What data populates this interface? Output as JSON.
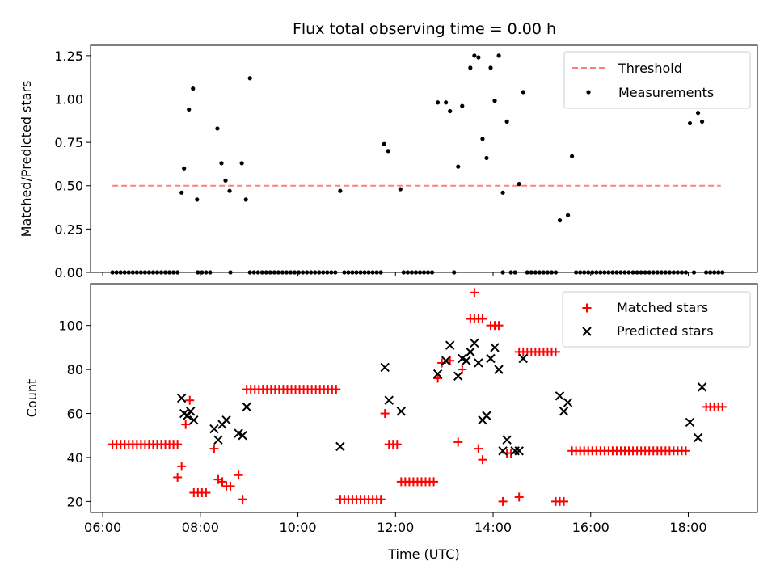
{
  "chart_data": [
    {
      "type": "scatter",
      "title": "Flux total observing time = 0.00 h",
      "xlabel": "",
      "ylabel": "Matched/Predicted stars",
      "ylim": [
        0,
        1.31
      ],
      "yticks": [
        "0.00",
        "0.25",
        "0.50",
        "0.75",
        "1.00",
        "1.25"
      ],
      "legend_position": "top-right",
      "threshold": {
        "name": "Threshold",
        "value": 0.5,
        "x_range": [
          "06:12",
          "18:40"
        ],
        "color": "#ff8080"
      },
      "series": [
        {
          "name": "Measurements",
          "color": "#000000",
          "points": [
            [
              "07:37",
              0.46
            ],
            [
              "07:40",
              0.6
            ],
            [
              "07:46",
              0.94
            ],
            [
              "07:51",
              1.06
            ],
            [
              "07:56",
              0.42
            ],
            [
              "08:21",
              0.83
            ],
            [
              "08:26",
              0.63
            ],
            [
              "08:31",
              0.53
            ],
            [
              "08:36",
              0.47
            ],
            [
              "08:51",
              0.63
            ],
            [
              "08:56",
              0.42
            ],
            [
              "09:01",
              1.12
            ],
            [
              "10:52",
              0.47
            ],
            [
              "11:46",
              0.74
            ],
            [
              "11:51",
              0.7
            ],
            [
              "12:06",
              0.48
            ],
            [
              "12:52",
              0.98
            ],
            [
              "13:02",
              0.98
            ],
            [
              "13:07",
              0.93
            ],
            [
              "13:17",
              0.61
            ],
            [
              "13:22",
              0.96
            ],
            [
              "13:32",
              1.18
            ],
            [
              "13:37",
              1.25
            ],
            [
              "13:42",
              1.24
            ],
            [
              "13:47",
              0.77
            ],
            [
              "13:52",
              0.66
            ],
            [
              "13:57",
              1.18
            ],
            [
              "14:02",
              0.99
            ],
            [
              "14:07",
              1.25
            ],
            [
              "14:12",
              0.46
            ],
            [
              "14:17",
              0.87
            ],
            [
              "14:32",
              0.51
            ],
            [
              "14:37",
              1.04
            ],
            [
              "15:22",
              0.3
            ],
            [
              "15:32",
              0.33
            ],
            [
              "15:37",
              0.67
            ],
            [
              "18:02",
              0.86
            ],
            [
              "18:12",
              0.92
            ],
            [
              "18:17",
              0.87
            ]
          ],
          "zero_ranges": [
            [
              "06:12",
              "07:32"
            ],
            [
              "07:57",
              "08:12"
            ],
            [
              "08:37",
              "08:37"
            ],
            [
              "09:01",
              "10:47"
            ],
            [
              "10:57",
              "11:42"
            ],
            [
              "12:10",
              "12:47"
            ],
            [
              "13:12",
              "13:12"
            ],
            [
              "14:12",
              "14:12"
            ],
            [
              "14:22",
              "14:27"
            ],
            [
              "14:42",
              "15:17"
            ],
            [
              "15:42",
              "17:57"
            ],
            [
              "18:07",
              "18:07"
            ],
            [
              "18:22",
              "18:42"
            ]
          ]
        }
      ]
    },
    {
      "type": "scatter",
      "title": "",
      "xlabel": "Time (UTC)",
      "ylabel": "Count",
      "ylim": [
        15,
        119
      ],
      "yticks": [
        "20",
        "40",
        "60",
        "80",
        "100"
      ],
      "xticks": [
        "06:00",
        "08:00",
        "10:00",
        "12:00",
        "14:00",
        "16:00",
        "18:00"
      ],
      "xlim": [
        "05:45",
        "19:25"
      ],
      "legend_position": "top-right",
      "series": [
        {
          "name": "Matched stars",
          "color": "#ff0000",
          "marker": "plus",
          "runs": [
            [
              "06:12",
              "07:32",
              5,
              46
            ],
            [
              "08:57",
              "10:47",
              5,
              71
            ],
            [
              "10:52",
              "11:42",
              5,
              21
            ],
            [
              "12:07",
              "12:47",
              5,
              29
            ],
            [
              "14:32",
              "15:17",
              5,
              88
            ],
            [
              "15:37",
              "17:57",
              5,
              43
            ],
            [
              "18:22",
              "18:42",
              5,
              63
            ],
            [
              "11:52",
              "12:02",
              5,
              46
            ],
            [
              "15:17",
              "15:27",
              5,
              20
            ],
            [
              "13:37",
              "13:47",
              5,
              103
            ],
            [
              "13:57",
              "14:07",
              5,
              100
            ],
            [
              "14:17",
              "14:22",
              5,
              42
            ]
          ],
          "points": [
            [
              "07:32",
              31
            ],
            [
              "07:37",
              36
            ],
            [
              "07:42",
              55
            ],
            [
              "07:47",
              66
            ],
            [
              "07:52",
              24
            ],
            [
              "07:57",
              24
            ],
            [
              "08:02",
              24
            ],
            [
              "08:07",
              24
            ],
            [
              "08:17",
              44
            ],
            [
              "08:22",
              30
            ],
            [
              "08:27",
              29
            ],
            [
              "08:32",
              27
            ],
            [
              "08:37",
              27
            ],
            [
              "08:47",
              32
            ],
            [
              "08:52",
              21
            ],
            [
              "11:47",
              60
            ],
            [
              "12:52",
              76
            ],
            [
              "12:57",
              83
            ],
            [
              "13:07",
              84
            ],
            [
              "13:17",
              47
            ],
            [
              "13:22",
              80
            ],
            [
              "13:32",
              103
            ],
            [
              "13:37",
              115
            ],
            [
              "13:42",
              44
            ],
            [
              "13:47",
              39
            ],
            [
              "14:12",
              20
            ],
            [
              "14:32",
              22
            ]
          ]
        },
        {
          "name": "Predicted stars",
          "color": "#000000",
          "marker": "x",
          "points": [
            [
              "07:37",
              67
            ],
            [
              "07:40",
              60
            ],
            [
              "07:44",
              59
            ],
            [
              "07:48",
              61
            ],
            [
              "07:52",
              57
            ],
            [
              "08:17",
              53
            ],
            [
              "08:22",
              48
            ],
            [
              "08:27",
              55
            ],
            [
              "08:32",
              57
            ],
            [
              "08:47",
              51
            ],
            [
              "08:52",
              50
            ],
            [
              "08:57",
              63
            ],
            [
              "10:52",
              45
            ],
            [
              "11:47",
              81
            ],
            [
              "11:52",
              66
            ],
            [
              "12:07",
              61
            ],
            [
              "12:52",
              78
            ],
            [
              "13:02",
              84
            ],
            [
              "13:07",
              91
            ],
            [
              "13:17",
              77
            ],
            [
              "13:22",
              85
            ],
            [
              "13:27",
              84
            ],
            [
              "13:32",
              88
            ],
            [
              "13:37",
              92
            ],
            [
              "13:42",
              83
            ],
            [
              "13:47",
              57
            ],
            [
              "13:52",
              59
            ],
            [
              "13:57",
              85
            ],
            [
              "14:02",
              90
            ],
            [
              "14:07",
              80
            ],
            [
              "14:12",
              43
            ],
            [
              "14:17",
              48
            ],
            [
              "14:27",
              43
            ],
            [
              "14:32",
              43
            ],
            [
              "14:37",
              85
            ],
            [
              "15:22",
              68
            ],
            [
              "15:27",
              61
            ],
            [
              "15:32",
              65
            ],
            [
              "18:02",
              56
            ],
            [
              "18:12",
              49
            ],
            [
              "18:17",
              72
            ]
          ]
        }
      ]
    }
  ]
}
